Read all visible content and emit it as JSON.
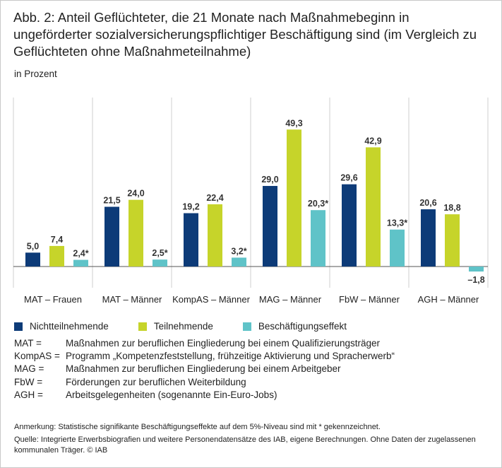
{
  "title": "Abb. 2: Anteil Geflüchteter, die 21 Monate nach Maßnahmebeginn in ungeförderter sozialversicherungspflichtiger Beschäftigung sind (im Vergleich zu Geflüchteten ohne Maßnahmeteilnahme)",
  "subtitle": "in Prozent",
  "colors": {
    "nicht": "#0d3b78",
    "teil": "#c6d42a",
    "effekt": "#5fc3c8",
    "grid": "#cfcfcf",
    "axis": "#555555"
  },
  "chart_data": {
    "type": "bar",
    "categories": [
      "MAT – Frauen",
      "MAT – Männer",
      "KompAS – Männer",
      "MAG – Männer",
      "FbW –  Männer",
      "AGH –  Männer"
    ],
    "series": [
      {
        "name": "Nichtteilnehmende",
        "values": [
          5.0,
          21.5,
          19.2,
          29.0,
          29.6,
          20.6
        ],
        "labels": [
          "5,0",
          "21,5",
          "19,2",
          "29,0",
          "29,6",
          "20,6"
        ]
      },
      {
        "name": "Teilnehmende",
        "values": [
          7.4,
          24.0,
          22.4,
          49.3,
          42.9,
          18.8
        ],
        "labels": [
          "7,4",
          "24,0",
          "22,4",
          "49,3",
          "42,9",
          "18,8"
        ]
      },
      {
        "name": "Beschäftigungseffekt",
        "values": [
          2.4,
          2.5,
          3.2,
          20.3,
          13.3,
          -1.8
        ],
        "labels": [
          "2,4*",
          "2,5*",
          "3,2*",
          "20,3*",
          "13,3*",
          "–1,8"
        ]
      }
    ],
    "ylim": [
      -5,
      55
    ],
    "legend_position": "bottom"
  },
  "legend": [
    {
      "label": "Nichtteilnehmende",
      "color": "#0d3b78"
    },
    {
      "label": "Teilnehmende",
      "color": "#c6d42a"
    },
    {
      "label": "Beschäftigungseffekt",
      "color": "#5fc3c8"
    }
  ],
  "abbreviations": [
    {
      "key": "MAT =",
      "value": "Maßnahmen zur beruflichen Eingliederung bei einem Qualifizierungsträger"
    },
    {
      "key": "KompAS =",
      "value": "Programm „Kompetenzfeststellung, frühzeitige Aktivierung und Spracherwerb“"
    },
    {
      "key": "MAG =",
      "value": "Maßnahmen zur beruflichen Eingliederung bei einem Arbeitgeber"
    },
    {
      "key": "FbW =",
      "value": "Förderungen zur beruflichen Weiterbildung"
    },
    {
      "key": "AGH =",
      "value": "Arbeitsgelegenheiten (sogenannte Ein-Euro-Jobs)"
    }
  ],
  "note": "Anmerkung: Statistische signifikante Beschäftigungseffekte auf dem 5%-Niveau sind mit * gekennzeichnet.",
  "source": "Quelle: Integrierte Erwerbsbiografien und weitere Personendatensätze des IAB, eigene Berechnungen. Ohne Daten der zugelassenen kommunalen Träger. © IAB"
}
